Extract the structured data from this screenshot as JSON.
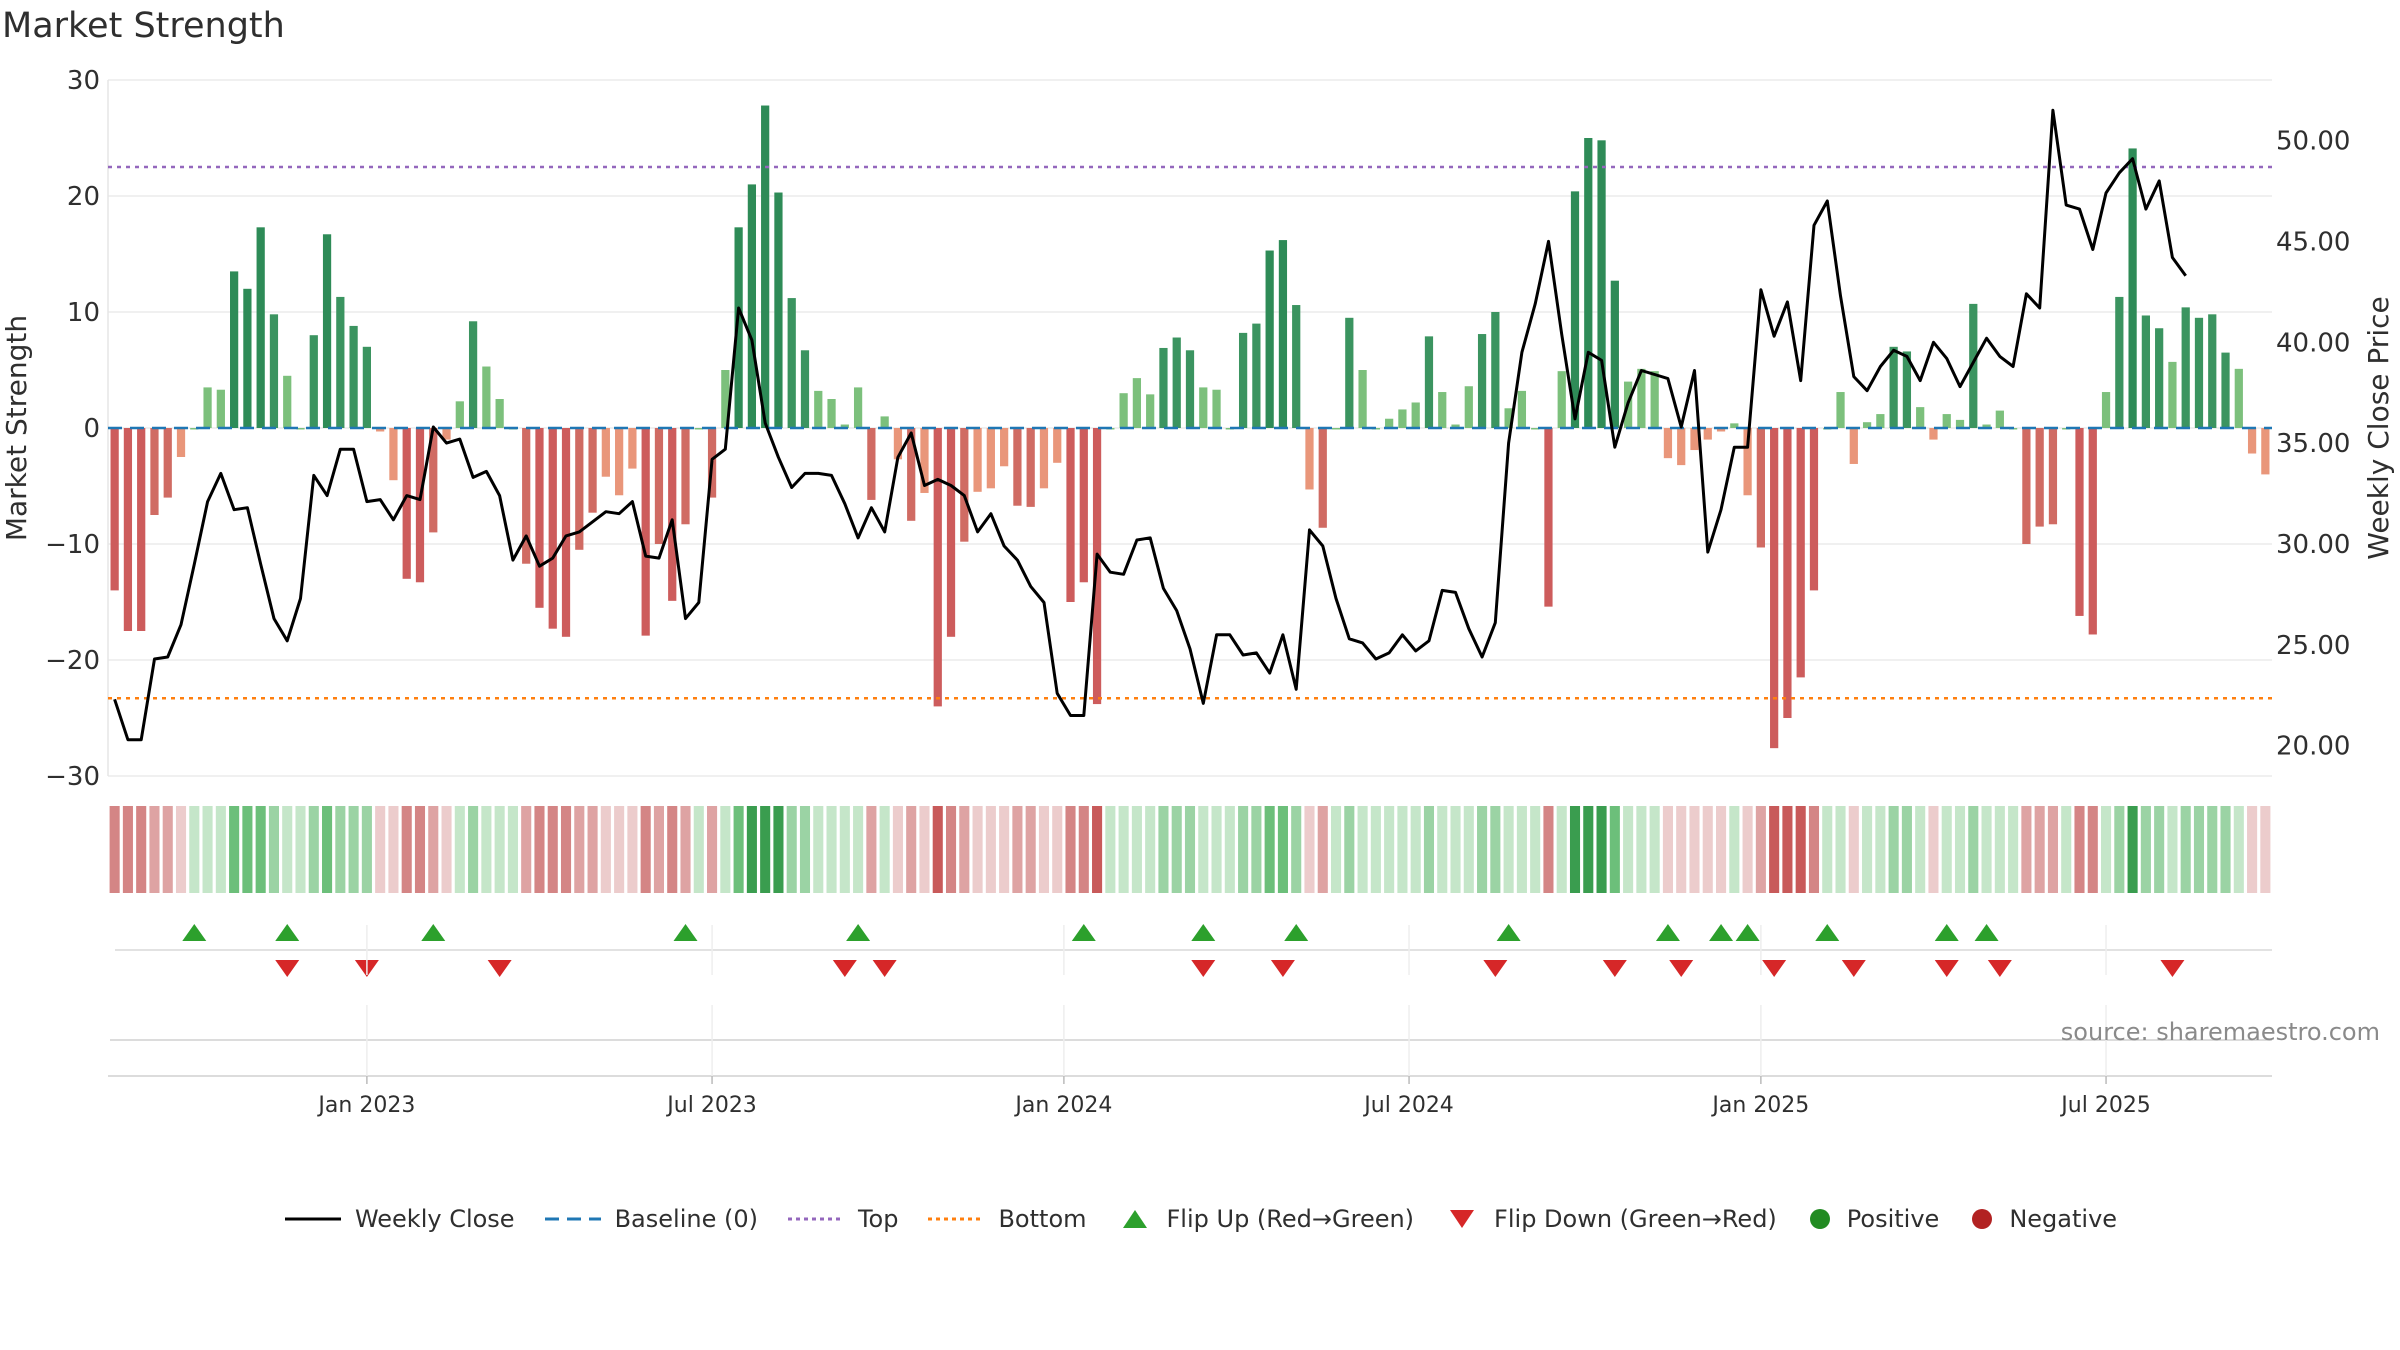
{
  "title": "Market Strength",
  "source_note": "source: sharemaestro.com",
  "legend": [
    {
      "key": "close",
      "label": "Weekly Close",
      "color": "#000000"
    },
    {
      "key": "baseline",
      "label": "Baseline (0)",
      "color": "#1f77b4"
    },
    {
      "key": "top",
      "label": "Top",
      "color": "#9467bd"
    },
    {
      "key": "bottom",
      "label": "Bottom",
      "color": "#ff7f0e"
    },
    {
      "key": "flipup",
      "label": "Flip Up (Red→Green)",
      "color": "#2ca02c"
    },
    {
      "key": "flipdown",
      "label": "Flip Down (Green→Red)",
      "color": "#d62728"
    },
    {
      "key": "positive",
      "label": "Positive",
      "color": "#228b22"
    },
    {
      "key": "negative",
      "label": "Negative",
      "color": "#b22222"
    }
  ],
  "chart_data": {
    "type": "bar",
    "title": "Market Strength",
    "ylabel": "Market Strength",
    "y2label": "Weekly Close Price",
    "ylim": [
      -30,
      30
    ],
    "y2lim": [
      18.5,
      53
    ],
    "yticks": [
      -30,
      -20,
      -10,
      0,
      10,
      20,
      30
    ],
    "y2ticks": [
      "20.00",
      "25.00",
      "30.00",
      "35.00",
      "40.00",
      "45.00",
      "50.00"
    ],
    "y2tick_values": [
      20,
      25,
      30,
      35,
      40,
      45,
      50
    ],
    "top_line": 22.5,
    "bottom_line": -23.3,
    "baseline": 0,
    "xlabels": [
      {
        "label": "Jan 2023",
        "week": 19.5
      },
      {
        "label": "Jul 2023",
        "week": 45.5
      },
      {
        "label": "Jan 2024",
        "week": 72
      },
      {
        "label": "Jul 2024",
        "week": 98
      },
      {
        "label": "Jan 2025",
        "week": 124.5
      },
      {
        "label": "Jul 2025",
        "week": 150.5
      }
    ],
    "strength": [
      -14,
      -17.5,
      -17.5,
      -7.5,
      -6,
      -2.5,
      0,
      3.5,
      3.3,
      13.5,
      12,
      17.3,
      9.8,
      4.5,
      0,
      8,
      16.7,
      11.3,
      8.8,
      7,
      -0.3,
      -4.5,
      -13,
      -13.3,
      -9,
      -1,
      2.3,
      9.2,
      5.3,
      2.5,
      0,
      -11.7,
      -15.5,
      -17.3,
      -18,
      -10.5,
      -7.3,
      -4.2,
      -5.8,
      -3.5,
      -17.9,
      -10,
      -14.9,
      -8.3,
      0,
      -6,
      5,
      17.3,
      21,
      27.8,
      20.3,
      11.2,
      6.7,
      3.2,
      2.5,
      0.3,
      3.5,
      -6.2,
      1,
      -2.7,
      -8,
      -5.6,
      -24,
      -18,
      -9.8,
      -5.5,
      -5.2,
      -3.3,
      -6.7,
      -6.8,
      -5.2,
      -3,
      -15,
      -13.3,
      -23.8,
      0,
      3,
      4.3,
      2.9,
      6.9,
      7.8,
      6.7,
      3.5,
      3.3,
      0,
      8.2,
      9,
      15.3,
      16.2,
      10.6,
      -5.3,
      -8.6,
      0,
      9.5,
      5,
      0,
      0.8,
      1.6,
      2.2,
      7.9,
      3.1,
      0.3,
      3.6,
      8.1,
      10,
      1.7,
      3.2,
      0,
      -15.4,
      4.9,
      20.4,
      25,
      24.8,
      12.7,
      4,
      5.1,
      4.9,
      -2.6,
      -3.2,
      -1.9,
      -1,
      -0.3,
      0.4,
      -5.8,
      -10.3,
      -27.6,
      -25,
      -21.5,
      -14,
      0,
      3.1,
      -3.1,
      0.5,
      1.2,
      7,
      6.6,
      1.8,
      -1,
      1.2,
      0.7,
      10.7,
      0.3,
      1.5,
      0,
      -10,
      -8.5,
      -8.3,
      0,
      -16.2,
      -17.8,
      3.1,
      11.3,
      24.1,
      9.7,
      8.6,
      5.7,
      10.4,
      9.5,
      9.8,
      6.5,
      5.1,
      -2.2,
      -4
    ],
    "close": [
      22.3,
      20.3,
      20.3,
      24.3,
      24.4,
      26,
      29,
      32.1,
      33.5,
      31.7,
      31.8,
      29,
      26.3,
      25.2,
      27.3,
      33.4,
      32.4,
      34.7,
      34.7,
      32.1,
      32.2,
      31.2,
      32.4,
      32.2,
      35.8,
      35,
      35.2,
      33.3,
      33.6,
      32.4,
      29.2,
      30.4,
      28.9,
      29.3,
      30.4,
      30.6,
      31.1,
      31.6,
      31.5,
      32.1,
      29.4,
      29.3,
      31.2,
      26.3,
      27.1,
      34.2,
      34.7,
      41.7,
      40.1,
      36,
      34.3,
      32.8,
      33.5,
      33.5,
      33.4,
      32,
      30.3,
      31.8,
      30.6,
      34.3,
      35.5,
      32.9,
      33.2,
      32.9,
      32.4,
      30.6,
      31.5,
      29.9,
      29.2,
      27.9,
      27.1,
      22.6,
      21.5,
      21.5,
      29.5,
      28.6,
      28.5,
      30.2,
      30.3,
      27.8,
      26.7,
      24.8,
      22.1,
      25.5,
      25.5,
      24.5,
      24.6,
      23.6,
      25.5,
      22.8,
      30.7,
      29.9,
      27.3,
      25.3,
      25.1,
      24.3,
      24.6,
      25.5,
      24.7,
      25.2,
      27.7,
      27.6,
      25.8,
      24.4,
      26.1,
      35,
      39.5,
      41.9,
      45,
      40.4,
      36.2,
      39.5,
      39.1,
      34.8,
      37,
      38.6,
      38.4,
      38.2,
      35.8,
      38.6,
      29.6,
      31.7,
      34.8,
      34.8,
      42.6,
      40.3,
      42,
      38.1,
      45.8,
      47,
      42.3,
      38.3,
      37.6,
      38.8,
      39.6,
      39.3,
      38.1,
      40,
      39.2,
      37.8,
      39,
      40.2,
      39.3,
      38.8,
      42.4,
      41.7,
      51.5,
      46.8,
      46.6,
      44.6,
      47.4,
      48.4,
      49.1,
      46.6,
      48,
      44.2,
      43.3
    ],
    "flip_up_weeks": [
      6,
      13,
      24,
      43,
      56,
      73,
      82,
      89,
      105,
      117,
      121,
      123,
      129,
      138,
      141
    ],
    "flip_down_weeks": [
      13,
      19,
      29,
      55,
      58,
      82,
      88,
      104,
      113,
      118,
      125,
      131,
      138,
      142,
      155
    ]
  }
}
